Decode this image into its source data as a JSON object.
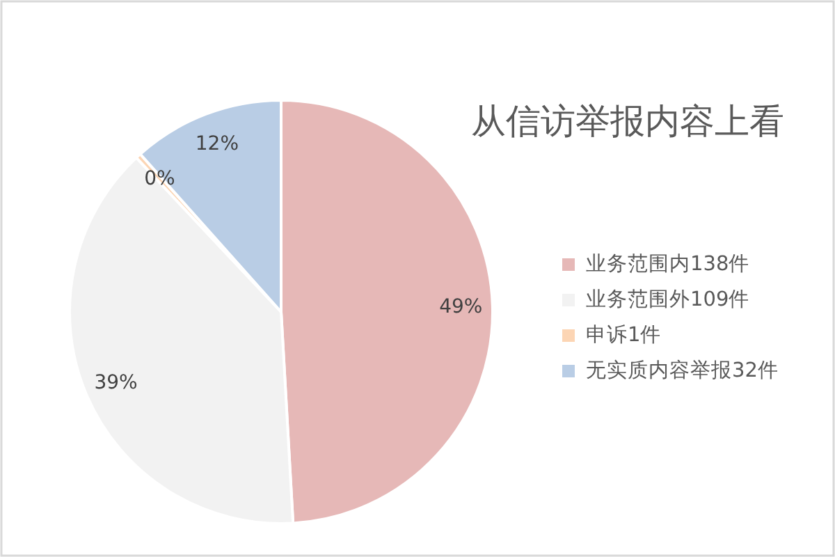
{
  "chart_data": {
    "type": "pie",
    "title": "从信访举报内容上看",
    "categories": [
      "业务范围内138件",
      "业务范围外109件",
      "申诉1件",
      "无实质内容举报32件"
    ],
    "values": [
      49.1,
      38.9,
      0.4,
      11.6
    ],
    "colors": [
      "#e6b8b7",
      "#f2f2f2",
      "#fcd5b4",
      "#b9cde5"
    ],
    "value_labels": [
      "49%",
      "39%",
      "0%",
      "12%"
    ],
    "legend": "right"
  }
}
